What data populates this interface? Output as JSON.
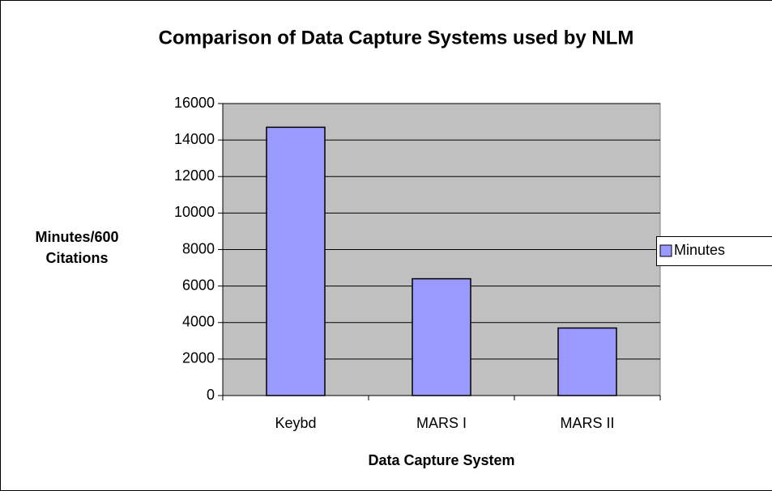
{
  "chart_data": {
    "type": "bar",
    "title": "Comparison of Data Capture Systems used by NLM",
    "xlabel": "Data Capture System",
    "ylabel": "Minutes/600 Citations",
    "categories": [
      "Keybd",
      "MARS I",
      "MARS II"
    ],
    "series": [
      {
        "name": "Minutes",
        "color": "#9999ff",
        "values": [
          14700,
          6400,
          3700
        ]
      }
    ],
    "ylim": [
      0,
      16000
    ],
    "yticks": [
      0,
      2000,
      4000,
      6000,
      8000,
      10000,
      12000,
      14000,
      16000
    ],
    "grid": true,
    "legend": "right"
  }
}
